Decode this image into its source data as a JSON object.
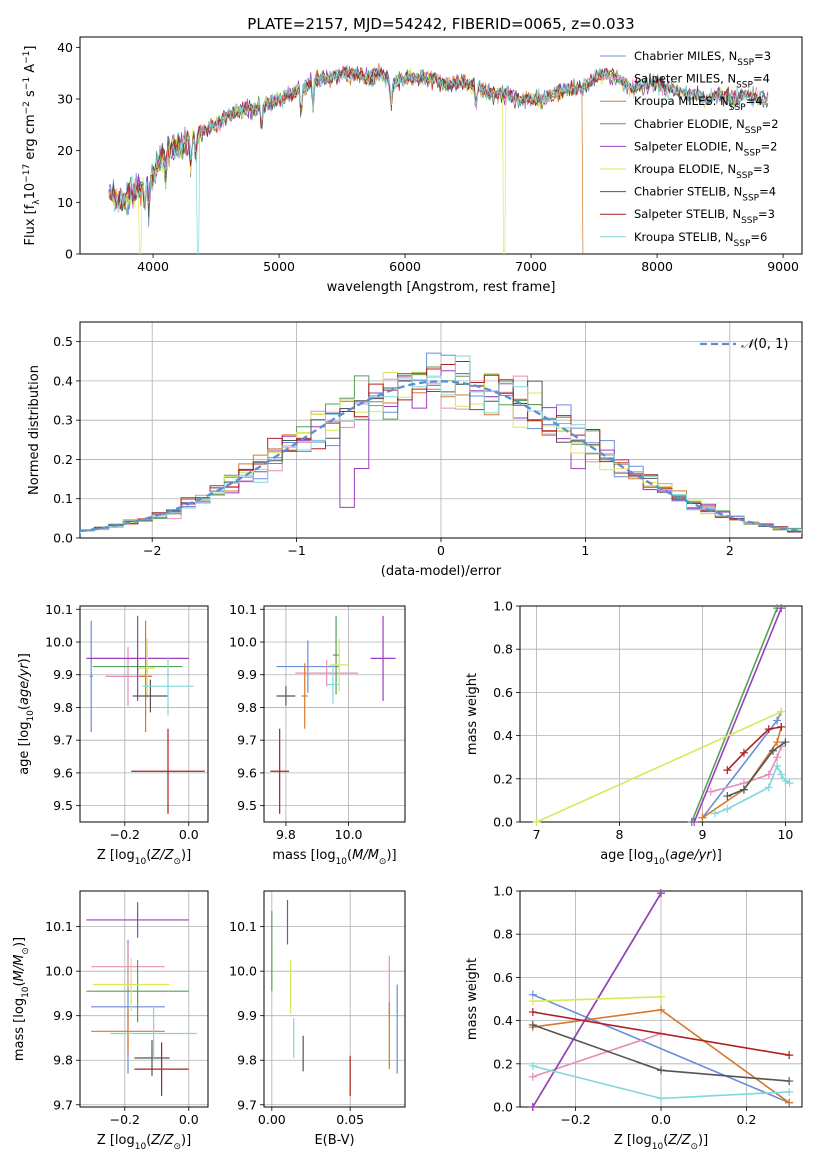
{
  "figure": {
    "title": "PLATE=2157, MJD=54242, FIBERID=0065, z=0.033"
  },
  "colors": {
    "Chabrier MILES": "#6a8ed8",
    "Salpeter MILES": "#e88ebc",
    "Kroupa MILES": "#d9782a",
    "Chabrier ELODIE": "#5a9e5a",
    "Salpeter ELODIE": "#9a3fbf",
    "Kroupa ELODIE": "#d8e85a",
    "Chabrier STELIB": "#555555",
    "Salpeter STELIB": "#b02020",
    "Kroupa STELIB": "#7fd8dc"
  },
  "chart_data": [
    {
      "id": "spectrum",
      "type": "line",
      "title": "PLATE=2157, MJD=54242, FIBERID=0065, z=0.033",
      "xlabel": "wavelength [Angstrom, rest frame]",
      "ylabel": "Flux [f_λ 10^-17 erg cm^-2 s^-1 A^-1]",
      "xlim": [
        3420,
        9150
      ],
      "ylim": [
        0,
        42
      ],
      "xticks": [
        "4000",
        "5000",
        "6000",
        "7000",
        "8000",
        "9000"
      ],
      "yticks": [
        "0",
        "10",
        "20",
        "30",
        "40"
      ],
      "legend_position": "top-right",
      "grid": false,
      "series": [
        {
          "name": "Chabrier MILES, N_SSP=3"
        },
        {
          "name": "Salpeter MILES, N_SSP=4"
        },
        {
          "name": "Kroupa MILES: N_SSP=4"
        },
        {
          "name": "Chabrier ELODIE, N_SSP=2"
        },
        {
          "name": "Salpeter ELODIE, N_SSP=2"
        },
        {
          "name": "Kroupa ELODIE, N_SSP=3"
        },
        {
          "name": "Chabrier STELIB, N_SSP=4"
        },
        {
          "name": "Salpeter STELIB, N_SSP=3"
        },
        {
          "name": "Kroupa STELIB, N_SSP=6"
        }
      ],
      "continuum": [
        [
          3650,
          12
        ],
        [
          3750,
          10
        ],
        [
          3850,
          12
        ],
        [
          3950,
          13
        ],
        [
          4000,
          15
        ],
        [
          4100,
          20
        ],
        [
          4200,
          21
        ],
        [
          4300,
          22
        ],
        [
          4400,
          24
        ],
        [
          4500,
          25
        ],
        [
          4600,
          27
        ],
        [
          4700,
          28
        ],
        [
          4800,
          28
        ],
        [
          4900,
          29
        ],
        [
          5000,
          30
        ],
        [
          5100,
          31
        ],
        [
          5200,
          32
        ],
        [
          5300,
          34
        ],
        [
          5400,
          34
        ],
        [
          5500,
          35
        ],
        [
          5600,
          35
        ],
        [
          5700,
          34
        ],
        [
          5800,
          35
        ],
        [
          5900,
          33
        ],
        [
          6000,
          34
        ],
        [
          6100,
          34
        ],
        [
          6200,
          34
        ],
        [
          6300,
          33
        ],
        [
          6400,
          33
        ],
        [
          6500,
          33
        ],
        [
          6600,
          32
        ],
        [
          6700,
          31
        ],
        [
          6800,
          31
        ],
        [
          6900,
          30
        ],
        [
          7000,
          30
        ],
        [
          7100,
          30
        ],
        [
          7200,
          31
        ],
        [
          7300,
          32
        ],
        [
          7400,
          32
        ],
        [
          7500,
          34
        ],
        [
          7600,
          35
        ],
        [
          7700,
          34
        ],
        [
          7800,
          32
        ],
        [
          7900,
          33
        ],
        [
          8000,
          33
        ],
        [
          8100,
          32
        ],
        [
          8200,
          31
        ],
        [
          8300,
          31
        ],
        [
          8400,
          30
        ],
        [
          8500,
          31
        ],
        [
          8600,
          30
        ],
        [
          8700,
          31
        ],
        [
          8800,
          30
        ],
        [
          8880,
          30
        ]
      ],
      "dropouts": [
        {
          "series": "Kroupa ELODIE, N_SSP=3",
          "x": 3900
        },
        {
          "series": "Kroupa STELIB, N_SSP=6",
          "x": 4360
        },
        {
          "series": "Kroupa ELODIE, N_SSP=3",
          "x": 6790
        },
        {
          "series": "Kroupa MILES: N_SSP=4",
          "x": 7420
        }
      ]
    },
    {
      "id": "residuals",
      "type": "area",
      "xlabel": "(data-model)/error",
      "ylabel": "Normed distribution",
      "xlim": [
        -2.5,
        2.5
      ],
      "ylim": [
        0,
        0.55
      ],
      "xticks": [
        "−2",
        "−1",
        "0",
        "1",
        "2"
      ],
      "yticks": [
        "0.0",
        "0.1",
        "0.2",
        "0.3",
        "0.4",
        "0.5"
      ],
      "grid": true,
      "legend_position": "top-right",
      "reference": {
        "name": "N(0,1)",
        "style": "dashed",
        "color": "#5b8fd4"
      },
      "bin_width": 0.1
    },
    {
      "id": "z_age",
      "type": "scatter",
      "xlabel": "Z [log10(Z/Z⊙)]",
      "ylabel": "age [log10(age/yr)]",
      "xlim": [
        -0.34,
        0.06
      ],
      "ylim": [
        9.45,
        10.11
      ],
      "xticks": [
        "−0.2",
        "0.0"
      ],
      "yticks": [
        "9.5",
        "9.6",
        "9.7",
        "9.8",
        "9.9",
        "10.0",
        "10.1"
      ],
      "grid": true,
      "points": [
        {
          "series": "Chabrier MILES",
          "x": -0.305,
          "xerr": 0.005,
          "y": 9.895,
          "yerr": 0.17
        },
        {
          "series": "Salpeter MILES",
          "x": -0.19,
          "xerr": 0.07,
          "y": 9.895,
          "yerr": 0.09
        },
        {
          "series": "Kroupa MILES",
          "x": -0.135,
          "xerr": 0.02,
          "y": 9.895,
          "yerr": 0.17
        },
        {
          "series": "Chabrier ELODIE",
          "x": -0.16,
          "xerr": 0.14,
          "y": 9.925,
          "yerr": 0.02
        },
        {
          "series": "Salpeter ELODIE",
          "x": -0.16,
          "xerr": 0.16,
          "y": 9.95,
          "yerr": 0.13
        },
        {
          "series": "Kroupa ELODIE",
          "x": -0.13,
          "xerr": 0.025,
          "y": 9.92,
          "yerr": 0.09
        },
        {
          "series": "Chabrier STELIB",
          "x": -0.12,
          "xerr": 0.055,
          "y": 9.835,
          "yerr": 0.05
        },
        {
          "series": "Salpeter STELIB",
          "x": -0.065,
          "xerr": 0.115,
          "y": 9.605,
          "yerr": 0.13
        },
        {
          "series": "Kroupa STELIB",
          "x": -0.065,
          "xerr": 0.08,
          "y": 9.865,
          "yerr": 0.09
        }
      ]
    },
    {
      "id": "mass_age",
      "type": "scatter",
      "xlabel": "mass [log10(M/M⊙)]",
      "ylabel": "",
      "xlim": [
        9.73,
        10.18
      ],
      "ylim": [
        9.45,
        10.11
      ],
      "xticks": [
        "9.8",
        "10.0"
      ],
      "yticks": [
        "9.5",
        "9.6",
        "9.7",
        "9.8",
        "9.9",
        "10.0",
        "10.1"
      ],
      "grid": true,
      "points": [
        {
          "series": "Chabrier MILES",
          "x": 9.87,
          "xerr": 0.1,
          "y": 9.925,
          "yerr": 0.08
        },
        {
          "series": "Salpeter MILES",
          "x": 9.93,
          "xerr": 0.1,
          "y": 9.905,
          "yerr": 0.04
        },
        {
          "series": "Kroupa MILES",
          "x": 9.86,
          "xerr": 0.01,
          "y": 9.835,
          "yerr": 0.1
        },
        {
          "series": "Chabrier ELODIE",
          "x": 9.96,
          "xerr": 0.01,
          "y": 9.96,
          "yerr": 0.12
        },
        {
          "series": "Salpeter ELODIE",
          "x": 10.11,
          "xerr": 0.04,
          "y": 9.95,
          "yerr": 0.13
        },
        {
          "series": "Kroupa ELODIE",
          "x": 9.97,
          "xerr": 0.03,
          "y": 9.93,
          "yerr": 0.08
        },
        {
          "series": "Chabrier STELIB",
          "x": 9.8,
          "xerr": 0.03,
          "y": 9.835,
          "yerr": 0.03
        },
        {
          "series": "Salpeter STELIB",
          "x": 9.78,
          "xerr": 0.03,
          "y": 9.605,
          "yerr": 0.13
        },
        {
          "series": "Kroupa STELIB",
          "x": 9.95,
          "xerr": 0.02,
          "y": 9.87,
          "yerr": 0.06
        }
      ]
    },
    {
      "id": "age_weight",
      "type": "line",
      "xlabel": "age [log10(age/yr)]",
      "ylabel": "mass weight",
      "xlim": [
        6.8,
        10.2
      ],
      "ylim": [
        0,
        1
      ],
      "xticks": [
        "7",
        "8",
        "9",
        "10"
      ],
      "yticks": [
        "0.0",
        "0.2",
        "0.4",
        "0.6",
        "0.8",
        "1.0"
      ],
      "grid": true,
      "series": [
        {
          "series": "Chabrier MILES",
          "points": [
            [
              9.0,
              0.02
            ],
            [
              9.9,
              0.47
            ],
            [
              9.95,
              0.51
            ]
          ]
        },
        {
          "series": "Salpeter MILES",
          "points": [
            [
              9.1,
              0.14
            ],
            [
              9.5,
              0.18
            ],
            [
              9.8,
              0.22
            ],
            [
              9.9,
              0.3
            ],
            [
              9.95,
              0.35
            ]
          ]
        },
        {
          "series": "Kroupa MILES",
          "points": [
            [
              9.0,
              0.02
            ],
            [
              9.5,
              0.15
            ],
            [
              9.9,
              0.37
            ],
            [
              9.95,
              0.44
            ]
          ]
        },
        {
          "series": "Chabrier ELODIE",
          "points": [
            [
              8.87,
              0.0
            ],
            [
              9.9,
              0.99
            ]
          ]
        },
        {
          "series": "Salpeter ELODIE",
          "points": [
            [
              8.9,
              0.0
            ],
            [
              9.95,
              0.99
            ]
          ]
        },
        {
          "series": "Kroupa ELODIE",
          "points": [
            [
              7.0,
              0.0
            ],
            [
              9.95,
              0.51
            ]
          ]
        },
        {
          "series": "Chabrier STELIB",
          "points": [
            [
              9.3,
              0.12
            ],
            [
              9.5,
              0.15
            ],
            [
              9.85,
              0.33
            ],
            [
              10.0,
              0.37
            ]
          ]
        },
        {
          "series": "Salpeter STELIB",
          "points": [
            [
              9.3,
              0.24
            ],
            [
              9.5,
              0.32
            ],
            [
              9.8,
              0.43
            ],
            [
              9.95,
              0.44
            ]
          ]
        },
        {
          "series": "Kroupa STELIB",
          "points": [
            [
              9.15,
              0.04
            ],
            [
              9.3,
              0.06
            ],
            [
              9.8,
              0.16
            ],
            [
              9.9,
              0.26
            ],
            [
              9.95,
              0.22
            ],
            [
              10.0,
              0.19
            ],
            [
              10.05,
              0.18
            ]
          ]
        }
      ]
    },
    {
      "id": "z_mass",
      "type": "scatter",
      "xlabel": "Z [log10(Z/Z⊙)]",
      "ylabel": "mass [log10(M/M⊙)]",
      "xlim": [
        -0.34,
        0.06
      ],
      "ylim": [
        9.695,
        10.18
      ],
      "xticks": [
        "−0.2",
        "0.0"
      ],
      "yticks": [
        "9.7",
        "9.8",
        "9.9",
        "10.0",
        "10.1"
      ],
      "grid": true,
      "points": [
        {
          "series": "Chabrier MILES",
          "x": -0.19,
          "xerr": 0.115,
          "y": 9.92,
          "yerr": 0.15
        },
        {
          "series": "Salpeter MILES",
          "x": -0.19,
          "xerr": 0.115,
          "y": 10.01,
          "yerr": 0.05
        },
        {
          "series": "Kroupa MILES",
          "x": -0.19,
          "xerr": 0.115,
          "y": 9.865,
          "yerr": 0.05
        },
        {
          "series": "Chabrier ELODIE",
          "x": -0.16,
          "xerr": 0.16,
          "y": 9.955,
          "yerr": 0.07
        },
        {
          "series": "Salpeter ELODIE",
          "x": -0.16,
          "xerr": 0.16,
          "y": 10.115,
          "yerr": 0.04
        },
        {
          "series": "Kroupa ELODIE",
          "x": -0.18,
          "xerr": 0.12,
          "y": 9.97,
          "yerr": 0.06
        },
        {
          "series": "Chabrier STELIB",
          "x": -0.115,
          "xerr": 0.055,
          "y": 9.805,
          "yerr": 0.04
        },
        {
          "series": "Salpeter STELIB",
          "x": -0.085,
          "xerr": 0.085,
          "y": 9.78,
          "yerr": 0.06
        },
        {
          "series": "Kroupa STELIB",
          "x": -0.11,
          "xerr": 0.135,
          "y": 9.86,
          "yerr": 0.06
        }
      ]
    },
    {
      "id": "ebv_mass",
      "type": "scatter",
      "xlabel": "E(B-V)",
      "ylabel": "",
      "xlim": [
        -0.005,
        0.085
      ],
      "ylim": [
        9.695,
        10.18
      ],
      "xticks": [
        "0.00",
        "0.05"
      ],
      "yticks": [
        "9.7",
        "9.8",
        "9.9",
        "10.0",
        "10.1"
      ],
      "grid": true,
      "points": [
        {
          "series": "Chabrier MILES",
          "x": 0.08,
          "y": 9.87,
          "yerr": 0.1
        },
        {
          "series": "Salpeter MILES",
          "x": 0.075,
          "y": 9.965,
          "yerr": 0.07
        },
        {
          "series": "Kroupa MILES",
          "x": 0.075,
          "y": 9.855,
          "yerr": 0.075
        },
        {
          "series": "Chabrier ELODIE",
          "x": 0.0,
          "y": 10.045,
          "yerr": 0.09
        },
        {
          "series": "Salpeter ELODIE",
          "x": 0.01,
          "y": 10.11,
          "yerr": 0.05
        },
        {
          "series": "Kroupa ELODIE",
          "x": 0.012,
          "y": 9.965,
          "yerr": 0.06
        },
        {
          "series": "Chabrier STELIB",
          "x": 0.02,
          "y": 9.815,
          "yerr": 0.04
        },
        {
          "series": "Salpeter STELIB",
          "x": 0.05,
          "y": 9.765,
          "yerr": 0.045
        },
        {
          "series": "Kroupa STELIB",
          "x": 0.014,
          "y": 9.85,
          "yerr": 0.045
        }
      ]
    },
    {
      "id": "z_weight",
      "type": "line",
      "xlabel": "Z [log10(Z/Z⊙)]",
      "ylabel": "mass weight",
      "xlim": [
        -0.33,
        0.33
      ],
      "ylim": [
        0,
        1
      ],
      "xticks": [
        "−0.2",
        "0.0",
        "0.2"
      ],
      "yticks": [
        "0.0",
        "0.2",
        "0.4",
        "0.6",
        "0.8",
        "1.0"
      ],
      "grid": true,
      "series": [
        {
          "series": "Chabrier MILES",
          "points": [
            [
              -0.3,
              0.52
            ],
            [
              0.3,
              0.02
            ]
          ]
        },
        {
          "series": "Salpeter MILES",
          "points": [
            [
              -0.3,
              0.14
            ],
            [
              0.0,
              0.34
            ]
          ]
        },
        {
          "series": "Kroupa MILES",
          "points": [
            [
              -0.3,
              0.37
            ],
            [
              0.0,
              0.45
            ],
            [
              0.3,
              0.02
            ]
          ]
        },
        {
          "series": "Chabrier ELODIE",
          "points": [
            [
              -0.3,
              0.0
            ],
            [
              0.0,
              0.99
            ]
          ]
        },
        {
          "series": "Salpeter ELODIE",
          "points": [
            [
              -0.3,
              0.0
            ],
            [
              0.0,
              0.99
            ]
          ]
        },
        {
          "series": "Kroupa ELODIE",
          "points": [
            [
              -0.3,
              0.49
            ],
            [
              0.0,
              0.51
            ]
          ]
        },
        {
          "series": "Chabrier STELIB",
          "points": [
            [
              -0.3,
              0.38
            ],
            [
              0.0,
              0.17
            ],
            [
              0.3,
              0.12
            ]
          ]
        },
        {
          "series": "Salpeter STELIB",
          "points": [
            [
              -0.3,
              0.44
            ],
            [
              0.3,
              0.24
            ]
          ]
        },
        {
          "series": "Kroupa STELIB",
          "points": [
            [
              -0.3,
              0.19
            ],
            [
              0.0,
              0.04
            ],
            [
              0.3,
              0.07
            ]
          ]
        }
      ]
    }
  ]
}
